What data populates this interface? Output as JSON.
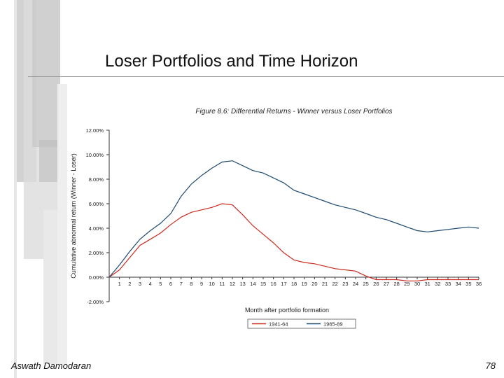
{
  "slide": {
    "title": "Loser Portfolios and Time Horizon",
    "author": "Aswath Damodaran",
    "page_number": "78"
  },
  "colors": {
    "series_1941_64": "#cc2a1f",
    "series_1965_89": "#1d4a72",
    "axis": "#333333",
    "decoration": "#cccccc"
  },
  "chart_data": {
    "type": "line",
    "title": "Figure 8.6: Differential Returns - Winner versus Loser Portfolios",
    "xlabel": "Month after portfolio formation",
    "ylabel": "Cumulative abnormal return (Winner - Loser)",
    "ylim": [
      -0.02,
      0.12
    ],
    "y_ticks": [
      -0.02,
      0.0,
      0.02,
      0.04,
      0.06,
      0.08,
      0.1,
      0.12
    ],
    "y_tick_labels": [
      "-2.00%",
      "0.00%",
      "2.00%",
      "4.00%",
      "6.00%",
      "8.00%",
      "10.00%",
      "12.00%"
    ],
    "x": [
      0,
      1,
      2,
      3,
      4,
      5,
      6,
      7,
      8,
      9,
      10,
      11,
      12,
      13,
      14,
      15,
      16,
      17,
      18,
      19,
      20,
      21,
      22,
      23,
      24,
      25,
      26,
      27,
      28,
      29,
      30,
      31,
      32,
      33,
      34,
      35,
      36
    ],
    "x_tick_labels": [
      "1",
      "2",
      "3",
      "4",
      "5",
      "6",
      "7",
      "8",
      "9",
      "10",
      "11",
      "12",
      "13",
      "14",
      "15",
      "16",
      "17",
      "18",
      "19",
      "20",
      "21",
      "22",
      "23",
      "24",
      "25",
      "26",
      "27",
      "28",
      "29",
      "30",
      "31",
      "32",
      "33",
      "34",
      "35",
      "36"
    ],
    "grid": false,
    "legend_position": "bottom-center",
    "series": [
      {
        "name": "1941-64",
        "values": [
          0.0,
          0.006,
          0.016,
          0.026,
          0.031,
          0.036,
          0.043,
          0.049,
          0.053,
          0.055,
          0.057,
          0.06,
          0.059,
          0.051,
          0.042,
          0.035,
          0.028,
          0.02,
          0.014,
          0.012,
          0.011,
          0.009,
          0.007,
          0.006,
          0.005,
          0.001,
          -0.002,
          -0.002,
          -0.002,
          -0.003,
          -0.003,
          -0.002,
          -0.002,
          -0.002,
          -0.002,
          -0.002,
          -0.002
        ]
      },
      {
        "name": "1965-89",
        "values": [
          0.0,
          0.01,
          0.021,
          0.031,
          0.038,
          0.044,
          0.052,
          0.066,
          0.076,
          0.083,
          0.089,
          0.094,
          0.095,
          0.091,
          0.087,
          0.085,
          0.081,
          0.077,
          0.071,
          0.068,
          0.065,
          0.062,
          0.059,
          0.057,
          0.055,
          0.052,
          0.049,
          0.047,
          0.044,
          0.041,
          0.038,
          0.037,
          0.038,
          0.039,
          0.04,
          0.041,
          0.04
        ]
      }
    ]
  }
}
